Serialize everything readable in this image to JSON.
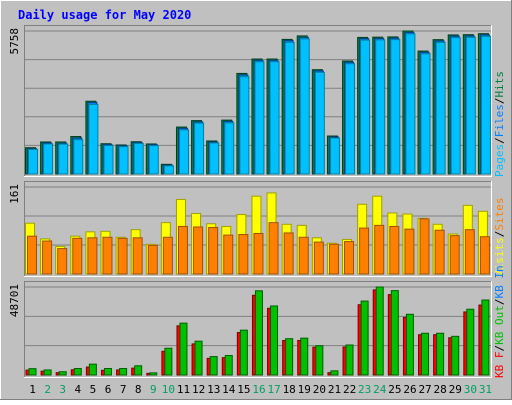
{
  "colors": {
    "background": "#c0c0c0",
    "panel": "#c0c0c0",
    "title": "#0000ff",
    "pages": "#00c0ff",
    "pages_dark": "#0080a0",
    "files": "#0080ff",
    "files_dark": "#004080",
    "hits": "#008040",
    "hits_dark": "#004020",
    "visits": "#ffff00",
    "visits_dark": "#a0a000",
    "sites": "#ff8000",
    "sites_dark": "#a05000",
    "kb_in": "#00c000",
    "kb_in_dark": "#006000",
    "kb_out": "#ff0000",
    "kb_out_dark": "#800000",
    "axis_label": "#000000",
    "weekend_label": "#00a060"
  },
  "chart_data": [
    {
      "type": "bar",
      "title": "Daily usage for May 2020",
      "panel": "hits_files_pages",
      "ymax_label": "5758",
      "ylim": [
        0,
        5758
      ],
      "grid": true,
      "legend": {
        "placement": "right",
        "entries": [
          "Pages",
          "/",
          "Files",
          "/",
          "Hits"
        ],
        "colors": [
          "#00c0ff",
          "#000000",
          "#0080ff",
          "#000000",
          "#008040"
        ]
      },
      "categories": [
        "1",
        "2",
        "3",
        "4",
        "5",
        "6",
        "7",
        "8",
        "9",
        "10",
        "11",
        "12",
        "13",
        "14",
        "15",
        "16",
        "17",
        "18",
        "19",
        "20",
        "21",
        "22",
        "23",
        "24",
        "25",
        "26",
        "27",
        "28",
        "29",
        "30",
        "31"
      ],
      "series": [
        {
          "name": "Hits",
          "values": [
            1060,
            1290,
            1290,
            1510,
            2930,
            1220,
            1170,
            1300,
            1210,
            390,
            1890,
            2150,
            1330,
            2170,
            4050,
            4630,
            4630,
            5420,
            5560,
            4200,
            1530,
            4550,
            5500,
            5510,
            5520,
            5758,
            4950,
            5410,
            5600,
            5610,
            5650
          ]
        },
        {
          "name": "Files",
          "values": [
            1020,
            1250,
            1240,
            1450,
            2880,
            1190,
            1140,
            1270,
            1180,
            360,
            1840,
            2100,
            1290,
            2120,
            3990,
            4580,
            4580,
            5370,
            5500,
            4150,
            1490,
            4500,
            5450,
            5460,
            5470,
            5700,
            4900,
            5360,
            5550,
            5560,
            5600
          ]
        },
        {
          "name": "Pages",
          "values": [
            990,
            1210,
            1200,
            1380,
            2800,
            1150,
            1100,
            1230,
            1140,
            330,
            1780,
            2050,
            1250,
            2060,
            3920,
            4520,
            4520,
            5300,
            5440,
            4090,
            1450,
            4440,
            5390,
            5400,
            5410,
            5640,
            4840,
            5300,
            5490,
            5500,
            5540
          ]
        }
      ]
    },
    {
      "type": "bar",
      "panel": "visits_sites",
      "ymax_label": "161",
      "ylim": [
        0,
        161
      ],
      "grid": true,
      "legend": {
        "placement": "right",
        "entries": [
          "Visits",
          "/",
          "Sites"
        ],
        "colors": [
          "#ffff00",
          "#000000",
          "#ff8000"
        ]
      },
      "categories": [
        "1",
        "2",
        "3",
        "4",
        "5",
        "6",
        "7",
        "8",
        "9",
        "10",
        "11",
        "12",
        "13",
        "14",
        "15",
        "16",
        "17",
        "18",
        "19",
        "20",
        "21",
        "22",
        "23",
        "24",
        "25",
        "26",
        "27",
        "28",
        "29",
        "30",
        "31"
      ],
      "series": [
        {
          "name": "Visits",
          "values": [
            94,
            65,
            51,
            70,
            78,
            79,
            68,
            82,
            55,
            95,
            138,
            112,
            93,
            88,
            110,
            144,
            150,
            92,
            90,
            67,
            57,
            64,
            129,
            144,
            113,
            111,
            103,
            92,
            74,
            127,
            116
          ]
        },
        {
          "name": "Sites",
          "values": [
            70,
            61,
            47,
            66,
            67,
            68,
            66,
            67,
            53,
            68,
            88,
            87,
            86,
            72,
            73,
            75,
            95,
            76,
            68,
            59,
            55,
            60,
            85,
            90,
            88,
            83,
            102,
            81,
            71,
            82,
            69
          ]
        }
      ]
    },
    {
      "type": "bar",
      "panel": "kbytes",
      "ymax_label": "48701",
      "ylim": [
        0,
        48701
      ],
      "grid": true,
      "legend": {
        "placement": "right",
        "entries": [
          "KB F",
          "/",
          "KB Out",
          "/",
          "KB In"
        ],
        "colors": [
          "#ff0000",
          "#000000",
          "#00c000",
          "#000000",
          "#0080ff"
        ]
      },
      "categories": [
        "1",
        "2",
        "3",
        "4",
        "5",
        "6",
        "7",
        "8",
        "9",
        "10",
        "11",
        "12",
        "13",
        "14",
        "15",
        "16",
        "17",
        "18",
        "19",
        "20",
        "21",
        "22",
        "23",
        "24",
        "25",
        "26",
        "27",
        "28",
        "29",
        "30",
        "31"
      ],
      "series": [
        {
          "name": "KB F",
          "values": [
            2700,
            2100,
            1300,
            2900,
            4400,
            2600,
            2800,
            3800,
            900,
            13100,
            27200,
            17200,
            9200,
            9600,
            23500,
            44100,
            36900,
            19100,
            19100,
            15400,
            1300,
            15500,
            38900,
            47100,
            44500,
            31900,
            22300,
            22300,
            20600,
            34900,
            38700
          ]
        },
        {
          "name": "KB Out",
          "values": [
            3500,
            2800,
            1800,
            3600,
            6000,
            3600,
            3600,
            5100,
            1200,
            14800,
            28700,
            18700,
            10200,
            10800,
            24800,
            46600,
            38200,
            20100,
            20400,
            16200,
            2300,
            16600,
            40900,
            48701,
            46700,
            33600,
            23100,
            23100,
            21400,
            36400,
            41500
          ]
        }
      ]
    }
  ],
  "weekend_days": [
    "2",
    "3",
    "9",
    "10",
    "16",
    "17",
    "23",
    "24",
    "30",
    "31"
  ]
}
